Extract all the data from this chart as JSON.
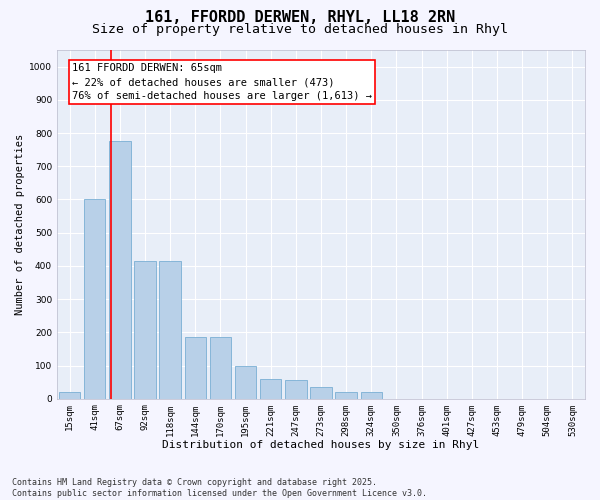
{
  "title": "161, FFORDD DERWEN, RHYL, LL18 2RN",
  "subtitle": "Size of property relative to detached houses in Rhyl",
  "xlabel": "Distribution of detached houses by size in Rhyl",
  "ylabel": "Number of detached properties",
  "categories": [
    "15sqm",
    "41sqm",
    "67sqm",
    "92sqm",
    "118sqm",
    "144sqm",
    "170sqm",
    "195sqm",
    "221sqm",
    "247sqm",
    "273sqm",
    "298sqm",
    "324sqm",
    "350sqm",
    "376sqm",
    "401sqm",
    "427sqm",
    "453sqm",
    "479sqm",
    "504sqm",
    "530sqm"
  ],
  "values": [
    20,
    600,
    775,
    415,
    415,
    185,
    185,
    100,
    60,
    55,
    35,
    20,
    20,
    0,
    0,
    0,
    0,
    0,
    0,
    0,
    0
  ],
  "bar_color": "#b8d0e8",
  "bar_edge_color": "#7aafd4",
  "ylim": [
    0,
    1050
  ],
  "yticks": [
    0,
    100,
    200,
    300,
    400,
    500,
    600,
    700,
    800,
    900,
    1000
  ],
  "background_color": "#e8eef8",
  "grid_color": "#ffffff",
  "annotation_text_line1": "161 FFORDD DERWEN: 65sqm",
  "annotation_text_line2": "← 22% of detached houses are smaller (473)",
  "annotation_text_line3": "76% of semi-detached houses are larger (1,613) →",
  "footer_text": "Contains HM Land Registry data © Crown copyright and database right 2025.\nContains public sector information licensed under the Open Government Licence v3.0.",
  "title_fontsize": 11,
  "subtitle_fontsize": 9.5,
  "xlabel_fontsize": 8,
  "ylabel_fontsize": 7.5,
  "tick_fontsize": 6.5,
  "annotation_fontsize": 7.5,
  "footer_fontsize": 6
}
